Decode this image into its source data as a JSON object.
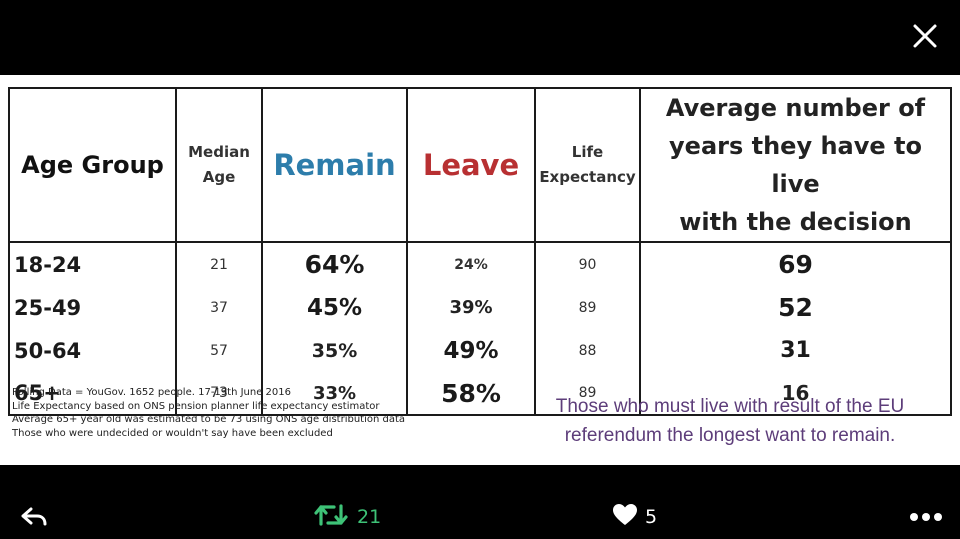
{
  "table": {
    "headers": {
      "age_group": "Age Group",
      "median_age_1": "Median",
      "median_age_2": "Age",
      "remain": "Remain",
      "leave": "Leave",
      "life_1": "Life",
      "life_2": "Expectancy",
      "years_1": "Average number of",
      "years_2": "years they have to live",
      "years_3": "with the decision"
    },
    "rows": [
      {
        "age_group": "18-24",
        "median_age": "21",
        "remain": "64%",
        "leave": "24%",
        "life_expectancy": "90",
        "years": "69"
      },
      {
        "age_group": "25-49",
        "median_age": "37",
        "remain": "45%",
        "leave": "39%",
        "life_expectancy": "89",
        "years": "52"
      },
      {
        "age_group": "50-64",
        "median_age": "57",
        "remain": "35%",
        "leave": "49%",
        "life_expectancy": "88",
        "years": "31"
      },
      {
        "age_group": "65+",
        "median_age": "73",
        "remain": "33%",
        "leave": "58%",
        "life_expectancy": "89",
        "years": "16"
      }
    ]
  },
  "notes": [
    "Polling Data = YouGov. 1652 people. 17-19th June 2016",
    "Life Expectancy based on ONS pension planner life expectancy estimator",
    "Average 65+ year old was estimated to be 73 using ONS age distribution data",
    "Those who were undecided or wouldn't say have been excluded"
  ],
  "caption": {
    "line1": "Those who must live with result of the EU",
    "line2": "referendum the longest want to remain."
  },
  "toolbar": {
    "retweet_count": "21",
    "like_count": "5"
  },
  "colors": {
    "remain": "#2d7dab",
    "leave": "#b83032",
    "caption": "#5d3d7a",
    "retweet": "#3ec277"
  }
}
